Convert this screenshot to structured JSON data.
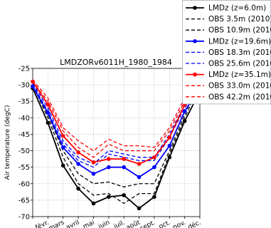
{
  "chart_data": {
    "type": "line",
    "title": "LMDZORv6011H_1980_1984",
    "y_label": "Air temperature (degC)",
    "categories": [
      null,
      "févr.",
      "mars",
      "avril",
      "mai",
      "juin",
      "juil.",
      "août",
      "sept.",
      "oct.",
      "nov.",
      "déc."
    ],
    "ylim": [
      -70,
      -25
    ],
    "yticks": [
      -70,
      -65,
      -60,
      -55,
      -50,
      -45,
      -40,
      -35,
      -30,
      -25
    ],
    "grid": true,
    "legend": "outside upper right",
    "series": [
      {
        "name": "LMDz (z=6.0m)",
        "color": "#000000",
        "linestyle": "solid",
        "marker": "o",
        "values": [
          -31,
          -41.5,
          -54.5,
          -61.5,
          -66,
          -64,
          -63.5,
          -67.5,
          -64,
          -52,
          -41,
          -32
        ]
      },
      {
        "name": "OBS 3.5m (2010)",
        "color": "#000000",
        "linestyle": "dashed",
        "values": [
          -30,
          -40,
          -52,
          -60,
          -63.5,
          -63,
          -66,
          -63,
          -63,
          -51,
          -40,
          -30
        ]
      },
      {
        "name": "OBS 10.9m (2010)",
        "color": "#000000",
        "linestyle": "dashed",
        "values": [
          -30,
          -39,
          -50,
          -57,
          -60,
          -59.5,
          -61,
          -60,
          -60,
          -50,
          -39,
          -29
        ]
      },
      {
        "name": "LMDz (z=19.6m)",
        "color": "#0000ff",
        "linestyle": "solid",
        "marker": "o",
        "values": [
          -30.5,
          -38.5,
          -49,
          -54,
          -57,
          -55,
          -55,
          -58,
          -55,
          -48.5,
          -38,
          -31
        ]
      },
      {
        "name": "OBS 18.3m (2010)",
        "color": "#0000ff",
        "linestyle": "dashed",
        "values": [
          -30,
          -38,
          -48,
          -53,
          -55,
          -51,
          -52,
          -53,
          -53,
          -46,
          -37,
          -30
        ]
      },
      {
        "name": "OBS 25.6m (2010)",
        "color": "#0000ff",
        "linestyle": "dashed",
        "values": [
          -29.5,
          -37,
          -47,
          -52,
          -54,
          -50,
          -51,
          -52,
          -52,
          -45,
          -36,
          -29.5
        ]
      },
      {
        "name": "LMDz (z=35.1m)",
        "color": "#ff0000",
        "linestyle": "solid",
        "marker": "o",
        "values": [
          -29,
          -36,
          -45.5,
          -50.5,
          -53.5,
          -52.5,
          -52.5,
          -54,
          -52,
          -46,
          -36,
          -29.5
        ]
      },
      {
        "name": "OBS 33.0m (2010)",
        "color": "#ff0000",
        "linestyle": "dashed",
        "values": [
          -29,
          -35,
          -44,
          -49,
          -52,
          -48,
          -50,
          -50,
          -50,
          -44,
          -35,
          -29
        ]
      },
      {
        "name": "OBS 42.2m (2010)",
        "color": "#ff0000",
        "linestyle": "dashed",
        "values": [
          -28.5,
          -34,
          -43,
          -47,
          -50,
          -46.5,
          -48.5,
          -48.5,
          -49,
          -43,
          -34,
          -28
        ]
      }
    ]
  }
}
